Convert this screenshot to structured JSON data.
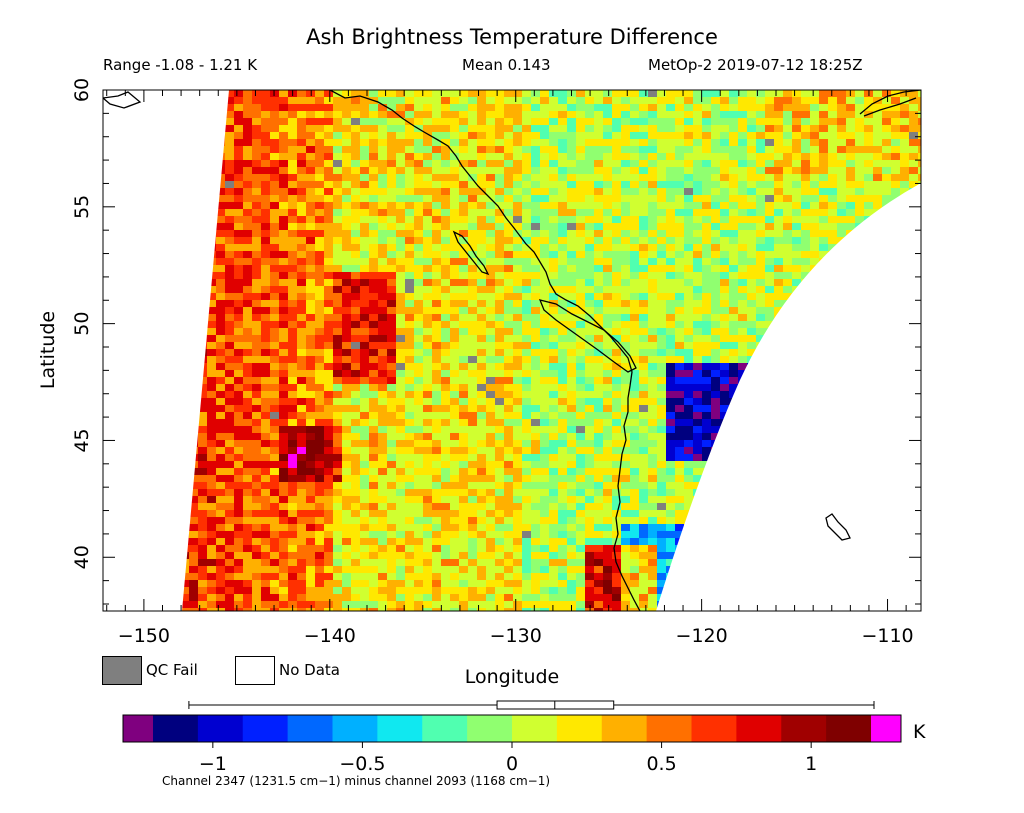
{
  "title": "Ash Brightness Temperature Difference",
  "header": {
    "range": "Range -1.08 - 1.21 K",
    "mean": "Mean 0.143",
    "satellite_time": "MetOp-2 2019-07-12 18:25Z"
  },
  "axes": {
    "ylabel": "Latitude",
    "xlabel": "Longitude",
    "lat_ticks": [
      {
        "value": 60,
        "label": "60"
      },
      {
        "value": 55,
        "label": "55"
      },
      {
        "value": 50,
        "label": "50"
      },
      {
        "value": 45,
        "label": "45"
      },
      {
        "value": 40,
        "label": "40"
      }
    ],
    "lon_ticks": [
      {
        "value": -150,
        "label": "−150"
      },
      {
        "value": -140,
        "label": "−140"
      },
      {
        "value": -130,
        "label": "−130"
      },
      {
        "value": -120,
        "label": "−120"
      },
      {
        "value": -110,
        "label": "−110"
      }
    ],
    "lat_range": [
      37.7,
      60
    ],
    "lon_range": [
      -152.2,
      -108.2
    ]
  },
  "legend": {
    "qc_fail": {
      "label": "QC Fail",
      "color": "#7f7f7f"
    },
    "no_data": {
      "label": "No Data",
      "color": "#ffffff"
    }
  },
  "colorbar": {
    "unit": "K",
    "range": [
      -1.2,
      1.2
    ],
    "tick_labels": [
      {
        "value": -1,
        "label": "−1"
      },
      {
        "value": -0.5,
        "label": "−0.5"
      },
      {
        "value": 0,
        "label": "0"
      },
      {
        "value": 0.5,
        "label": "0.5"
      },
      {
        "value": 1,
        "label": "1"
      }
    ],
    "under_color": "#7f007f",
    "over_color": "#ff00ff",
    "colors": [
      "#00007f",
      "#0000d0",
      "#0020ff",
      "#0068ff",
      "#00b0ff",
      "#10e8f0",
      "#50ffb0",
      "#90ff70",
      "#d0ff30",
      "#ffe800",
      "#ffb000",
      "#ff7000",
      "#ff3000",
      "#e00000",
      "#a00000",
      "#7f0000"
    ],
    "boxplot": {
      "min": -1.08,
      "q1": -0.05,
      "median": 0.143,
      "q3": 0.34,
      "max": 1.21
    }
  },
  "footnote": "Channel 2347 (1231.5 cm−1) minus channel 2093 (1168 cm−1)"
}
